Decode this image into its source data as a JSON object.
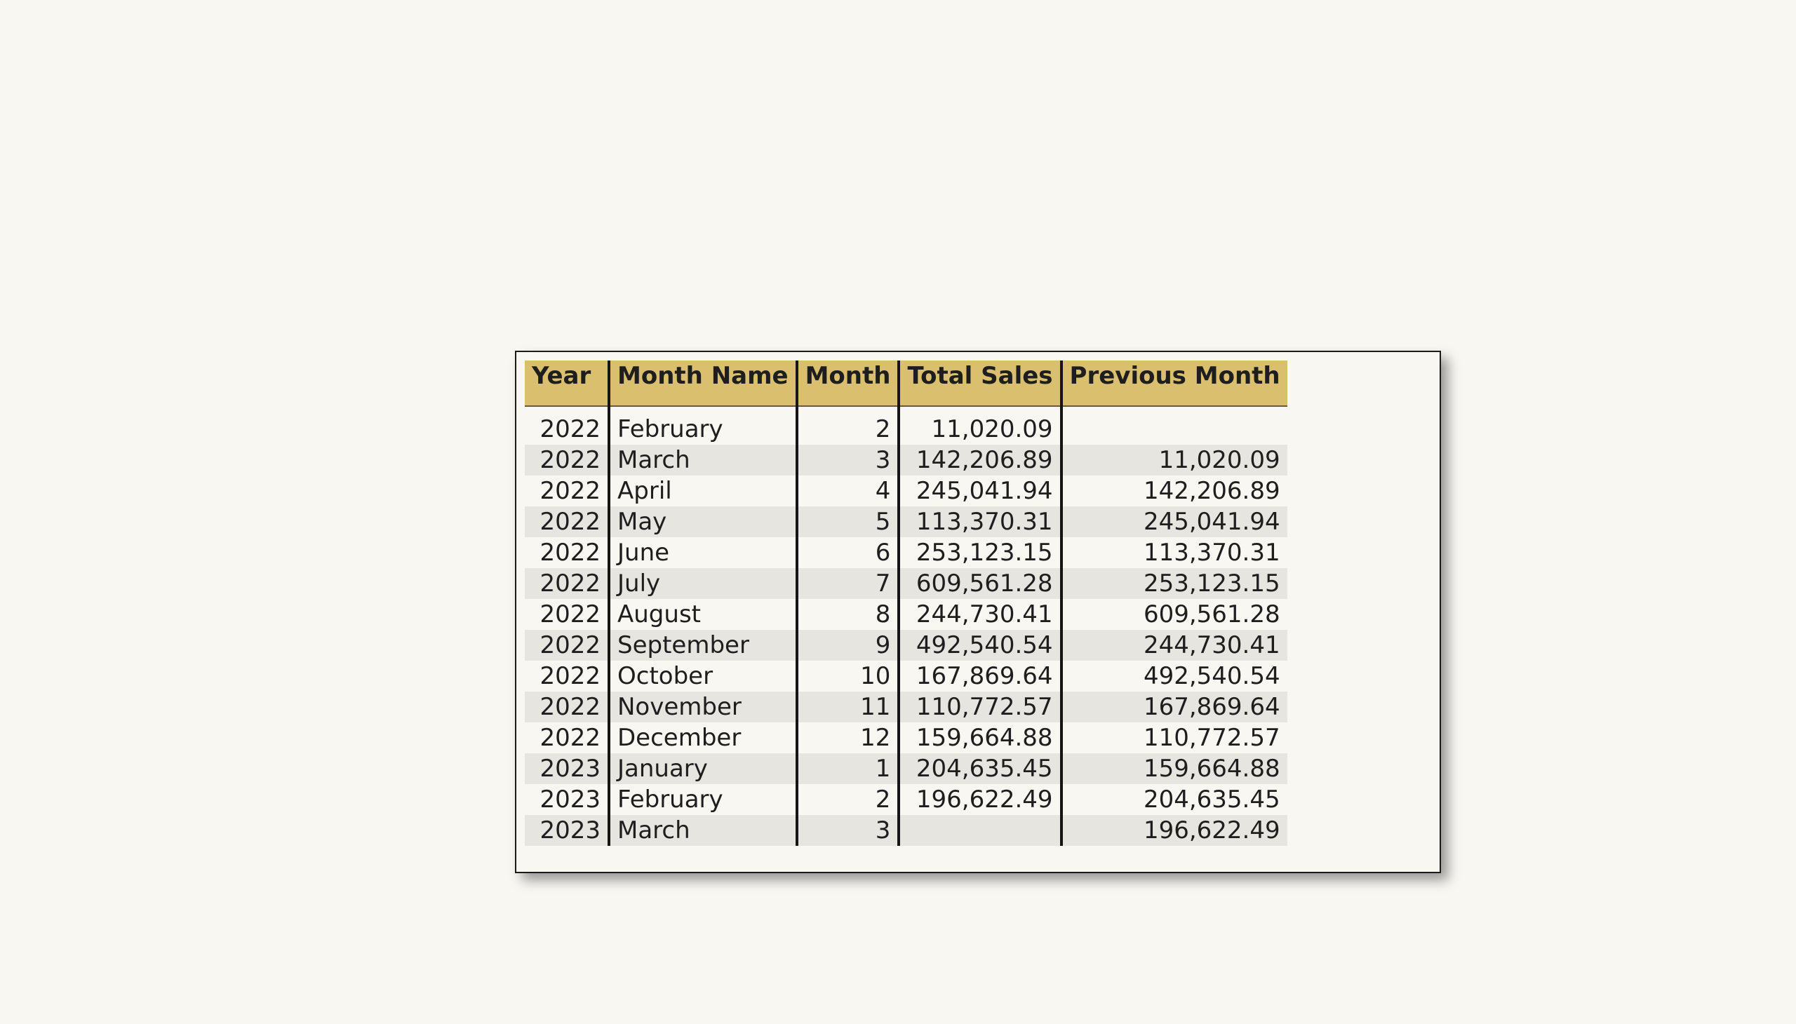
{
  "table": {
    "headers": [
      "Year",
      "Month Name",
      "Month",
      "Total Sales",
      "Previous Month"
    ],
    "rows": [
      [
        "2022",
        "February",
        "2",
        "11,020.09",
        ""
      ],
      [
        "2022",
        "March",
        "3",
        "142,206.89",
        "11,020.09"
      ],
      [
        "2022",
        "April",
        "4",
        "245,041.94",
        "142,206.89"
      ],
      [
        "2022",
        "May",
        "5",
        "113,370.31",
        "245,041.94"
      ],
      [
        "2022",
        "June",
        "6",
        "253,123.15",
        "113,370.31"
      ],
      [
        "2022",
        "July",
        "7",
        "609,561.28",
        "253,123.15"
      ],
      [
        "2022",
        "August",
        "8",
        "244,730.41",
        "609,561.28"
      ],
      [
        "2022",
        "September",
        "9",
        "492,540.54",
        "244,730.41"
      ],
      [
        "2022",
        "October",
        "10",
        "167,869.64",
        "492,540.54"
      ],
      [
        "2022",
        "November",
        "11",
        "110,772.57",
        "167,869.64"
      ],
      [
        "2022",
        "December",
        "12",
        "159,664.88",
        "110,772.57"
      ],
      [
        "2023",
        "January",
        "1",
        "204,635.45",
        "159,664.88"
      ],
      [
        "2023",
        "February",
        "2",
        "196,622.49",
        "204,635.45"
      ],
      [
        "2023",
        "March",
        "3",
        "",
        "196,622.49"
      ]
    ]
  },
  "colors": {
    "header_background": "#dac06e",
    "alternate_row": "#e6e5e0",
    "page_background": "#f8f7f2"
  }
}
